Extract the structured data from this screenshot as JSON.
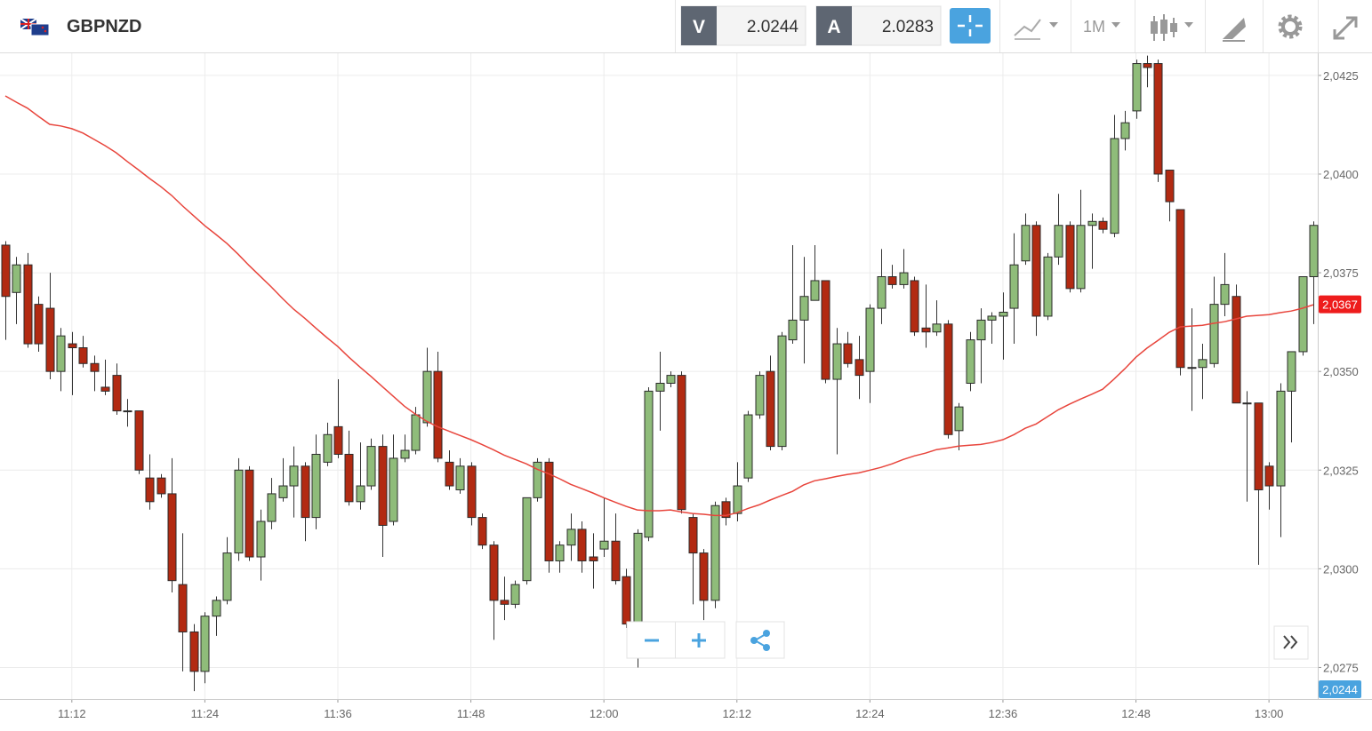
{
  "toolbar": {
    "symbol": "GBPNZD",
    "sell_label": "V",
    "sell_price": "2.0244",
    "buy_label": "A",
    "buy_price": "2.0283",
    "timeframe": "1M"
  },
  "chart_data": {
    "type": "candlestick",
    "categories": [
      null,
      null,
      null,
      null,
      null,
      null,
      "11:12",
      null,
      null,
      null,
      null,
      null,
      null,
      null,
      null,
      null,
      null,
      null,
      "11:24",
      null,
      null,
      null,
      null,
      null,
      null,
      null,
      null,
      null,
      null,
      null,
      "11:36",
      null,
      null,
      null,
      null,
      null,
      null,
      null,
      null,
      null,
      null,
      null,
      "11:48",
      null,
      null,
      null,
      null,
      null,
      null,
      null,
      null,
      null,
      null,
      null,
      "12:00",
      null,
      null,
      null,
      null,
      null,
      null,
      null,
      null,
      null,
      null,
      null,
      "12:12",
      null,
      null,
      null,
      null,
      null,
      null,
      null,
      null,
      null,
      null,
      null,
      "12:24",
      null,
      null,
      null,
      null,
      null,
      null,
      null,
      null,
      null,
      null,
      null,
      "12:36",
      null,
      null,
      null,
      null,
      null,
      null,
      null,
      null,
      null,
      null,
      null,
      "12:48",
      null,
      null,
      null,
      null,
      null,
      null,
      null,
      null,
      null,
      null,
      null,
      "13:00",
      null,
      null,
      null,
      null
    ],
    "open": [
      2.0382,
      2.037,
      2.0377,
      2.0367,
      2.0366,
      2.035,
      2.0357,
      2.0356,
      2.0352,
      2.0346,
      2.0349,
      2.034,
      2.034,
      2.0323,
      2.0323,
      2.0319,
      2.0296,
      2.0284,
      2.0274,
      2.0288,
      2.0292,
      2.0304,
      2.0325,
      2.0303,
      2.0312,
      2.0318,
      2.0321,
      2.0326,
      2.0313,
      2.0327,
      2.0336,
      2.0329,
      2.0317,
      2.0321,
      2.0331,
      2.0312,
      2.0328,
      2.033,
      2.0337,
      2.035,
      2.0327,
      2.032,
      2.0326,
      2.0313,
      2.0306,
      2.0292,
      2.0291,
      2.0297,
      2.0318,
      2.0327,
      2.0302,
      2.0306,
      2.031,
      2.0303,
      2.0305,
      2.0307,
      2.0298,
      2.0286,
      2.0308,
      2.0345,
      2.0347,
      2.0349,
      2.0313,
      2.0304,
      2.0292,
      2.0317,
      2.0314,
      2.0323,
      2.0339,
      2.035,
      2.0331,
      2.0358,
      2.0363,
      2.0368,
      2.0373,
      2.0348,
      2.0357,
      2.0353,
      2.035,
      2.0366,
      2.0374,
      2.0372,
      2.0373,
      2.0361,
      2.036,
      2.0362,
      2.0335,
      2.0347,
      2.0358,
      2.0363,
      2.0364,
      2.0366,
      2.0378,
      2.0387,
      2.0364,
      2.0379,
      2.0387,
      2.0371,
      2.0387,
      2.0388,
      2.0385,
      2.0409,
      2.0416,
      2.0428,
      2.0428,
      2.0401,
      2.0391,
      2.0351,
      2.0351,
      2.0352,
      2.0367,
      2.0369,
      2.0342,
      2.0342,
      2.0326,
      2.0321,
      2.0345,
      2.0355,
      2.0374
    ],
    "high": [
      2.0383,
      2.0379,
      2.038,
      2.0369,
      2.0375,
      2.0361,
      2.036,
      2.0359,
      2.0354,
      2.0353,
      2.0352,
      2.0343,
      2.034,
      2.0329,
      2.0324,
      2.0328,
      2.0309,
      2.0286,
      2.0289,
      2.0293,
      2.0308,
      2.0328,
      2.0326,
      2.0315,
      2.0323,
      2.0328,
      2.0331,
      2.0327,
      2.0334,
      2.0337,
      2.0348,
      2.0335,
      2.0332,
      2.0333,
      2.0334,
      2.0334,
      2.0334,
      2.0341,
      2.0356,
      2.0355,
      2.033,
      2.0328,
      2.0327,
      2.0314,
      2.0307,
      2.0298,
      2.0297,
      2.0318,
      2.0328,
      2.0328,
      2.0307,
      2.0314,
      2.0312,
      2.0309,
      2.0318,
      2.0314,
      2.03,
      2.031,
      2.0346,
      2.0355,
      2.035,
      2.035,
      2.0314,
      2.0305,
      2.0317,
      2.0318,
      2.0327,
      2.034,
      2.035,
      2.0354,
      2.036,
      2.0382,
      2.0379,
      2.0382,
      2.0373,
      2.0361,
      2.036,
      2.0359,
      2.0367,
      2.0381,
      2.0377,
      2.0381,
      2.0374,
      2.0372,
      2.0368,
      2.0363,
      2.0342,
      2.036,
      2.0366,
      2.0365,
      2.037,
      2.0385,
      2.039,
      2.0388,
      2.038,
      2.0395,
      2.0388,
      2.0396,
      2.039,
      2.0389,
      2.0415,
      2.0416,
      2.0429,
      2.043,
      2.0429,
      2.0401,
      2.0391,
      2.0366,
      2.0357,
      2.0374,
      2.038,
      2.0372,
      2.0345,
      2.0342,
      2.0327,
      2.0347,
      2.0355,
      2.0374,
      2.0388
    ],
    "low": [
      2.0358,
      2.0362,
      2.0356,
      2.0355,
      2.0348,
      2.0345,
      2.0344,
      2.0351,
      2.0345,
      2.0344,
      2.0339,
      2.0336,
      2.0324,
      2.0315,
      2.0318,
      2.0294,
      2.0274,
      2.0269,
      2.0271,
      2.0283,
      2.0291,
      2.0302,
      2.0302,
      2.0297,
      2.031,
      2.0317,
      2.0313,
      2.0307,
      2.031,
      2.0326,
      2.0328,
      2.0316,
      2.0315,
      2.032,
      2.0303,
      2.0311,
      2.0327,
      2.0329,
      2.0336,
      2.0327,
      2.032,
      2.0319,
      2.0311,
      2.0305,
      2.0282,
      2.0287,
      2.029,
      2.0296,
      2.0317,
      2.0299,
      2.0299,
      2.0302,
      2.0299,
      2.0295,
      2.0303,
      2.0296,
      2.0285,
      2.0275,
      2.0307,
      2.0335,
      2.0346,
      2.0314,
      2.0291,
      2.0287,
      2.029,
      2.0311,
      2.0312,
      2.0322,
      2.0338,
      2.033,
      2.033,
      2.0357,
      2.0352,
      2.0368,
      2.0347,
      2.0329,
      2.0351,
      2.0343,
      2.0342,
      2.0362,
      2.0371,
      2.0371,
      2.0359,
      2.0356,
      2.0359,
      2.0333,
      2.033,
      2.0345,
      2.0347,
      2.0357,
      2.0353,
      2.0357,
      2.0377,
      2.0359,
      2.0363,
      2.0377,
      2.037,
      2.037,
      2.0376,
      2.0385,
      2.0384,
      2.0406,
      2.0414,
      2.0422,
      2.0398,
      2.0388,
      2.0349,
      2.034,
      2.0343,
      2.0351,
      2.0364,
      2.0342,
      2.0317,
      2.0301,
      2.0315,
      2.0308,
      2.0332,
      2.0354,
      2.0362
    ],
    "close": [
      2.0369,
      2.0377,
      2.0357,
      2.0357,
      2.035,
      2.0359,
      2.0356,
      2.0352,
      2.035,
      2.0345,
      2.034,
      2.034,
      2.0325,
      2.0317,
      2.0319,
      2.0297,
      2.0284,
      2.0274,
      2.0288,
      2.0292,
      2.0304,
      2.0325,
      2.0303,
      2.0312,
      2.0319,
      2.0321,
      2.0326,
      2.0313,
      2.0329,
      2.0334,
      2.0329,
      2.0317,
      2.0321,
      2.0331,
      2.0311,
      2.0328,
      2.033,
      2.0339,
      2.035,
      2.0328,
      2.0321,
      2.0326,
      2.0313,
      2.0306,
      2.0292,
      2.0291,
      2.0296,
      2.0318,
      2.0327,
      2.0302,
      2.0306,
      2.031,
      2.0302,
      2.0302,
      2.0307,
      2.0297,
      2.0286,
      2.0309,
      2.0345,
      2.0347,
      2.0349,
      2.0315,
      2.0304,
      2.0292,
      2.0316,
      2.0313,
      2.0321,
      2.0339,
      2.0349,
      2.0331,
      2.0359,
      2.0363,
      2.0369,
      2.0373,
      2.0348,
      2.0357,
      2.0352,
      2.0349,
      2.0366,
      2.0374,
      2.0372,
      2.0375,
      2.036,
      2.036,
      2.0362,
      2.0334,
      2.0341,
      2.0358,
      2.0363,
      2.0364,
      2.0365,
      2.0377,
      2.0387,
      2.0364,
      2.0379,
      2.0387,
      2.0371,
      2.0387,
      2.0388,
      2.0386,
      2.0409,
      2.0413,
      2.0428,
      2.0427,
      2.04,
      2.0393,
      2.0351,
      2.0351,
      2.0353,
      2.0367,
      2.0372,
      2.0342,
      2.0342,
      2.032,
      2.0321,
      2.0345,
      2.0355,
      2.0374,
      2.0387
    ],
    "line": {
      "color": "#e8453c",
      "values": [
        2.04198,
        2.04182,
        2.04167,
        2.04146,
        2.04126,
        2.04122,
        2.04115,
        2.04104,
        2.04088,
        2.04072,
        2.04054,
        2.04032,
        2.04011,
        2.03989,
        2.03969,
        2.03946,
        2.03919,
        2.03894,
        2.03869,
        2.03847,
        2.03824,
        2.03797,
        2.03768,
        2.03741,
        2.03714,
        2.03685,
        2.03658,
        2.03635,
        2.0361,
        2.03586,
        2.03563,
        2.03536,
        2.03511,
        2.03487,
        2.03462,
        2.03437,
        2.03412,
        2.03392,
        2.03374,
        2.0336,
        2.03349,
        2.03338,
        2.03327,
        2.03315,
        2.03302,
        2.03288,
        2.03277,
        2.03266,
        2.03252,
        2.03241,
        2.03228,
        2.03214,
        2.03203,
        2.03192,
        2.0318,
        2.03169,
        2.03158,
        2.03149,
        2.03147,
        2.03147,
        2.03149,
        2.03144,
        2.0314,
        2.03138,
        2.03135,
        2.03135,
        2.03142,
        2.03153,
        2.03162,
        2.03174,
        2.03185,
        2.03196,
        2.03212,
        2.03223,
        2.03228,
        2.03234,
        2.03239,
        2.03243,
        2.0325,
        2.03257,
        2.03266,
        2.03277,
        2.03286,
        2.03293,
        2.03302,
        2.03306,
        2.03311,
        2.03313,
        2.03315,
        2.0332,
        2.03327,
        2.0334,
        2.03356,
        2.03367,
        2.03385,
        2.03403,
        2.03417,
        2.0343,
        2.03442,
        2.03455,
        2.0348,
        2.03507,
        2.03536,
        2.03559,
        2.03579,
        2.03599,
        2.03613,
        2.03615,
        2.03617,
        2.03622,
        2.03626,
        2.03633,
        2.0364,
        2.03642,
        2.03644,
        2.03649,
        2.03653,
        2.0366,
        2.03669
      ]
    },
    "up_color": "#8fbc7a",
    "down_color": "#b22a12",
    "ylim": [
      2.0267,
      2.04306
    ],
    "yticks": [
      {
        "value": 2.0275,
        "label": "2,0275"
      },
      {
        "value": 2.03,
        "label": "2,0300"
      },
      {
        "value": 2.0325,
        "label": "2,0325"
      },
      {
        "value": 2.035,
        "label": "2,0350"
      },
      {
        "value": 2.0375,
        "label": "2,0375"
      },
      {
        "value": 2.04,
        "label": "2,0400"
      },
      {
        "value": 2.0425,
        "label": "2,0425"
      }
    ],
    "grid": true,
    "price_tags": [
      {
        "value": 2.0367,
        "label": "2,0367",
        "color": "#ee1c1c"
      },
      {
        "value": 2.0244,
        "label": "2,0244",
        "color": "#4aa3df"
      }
    ]
  }
}
